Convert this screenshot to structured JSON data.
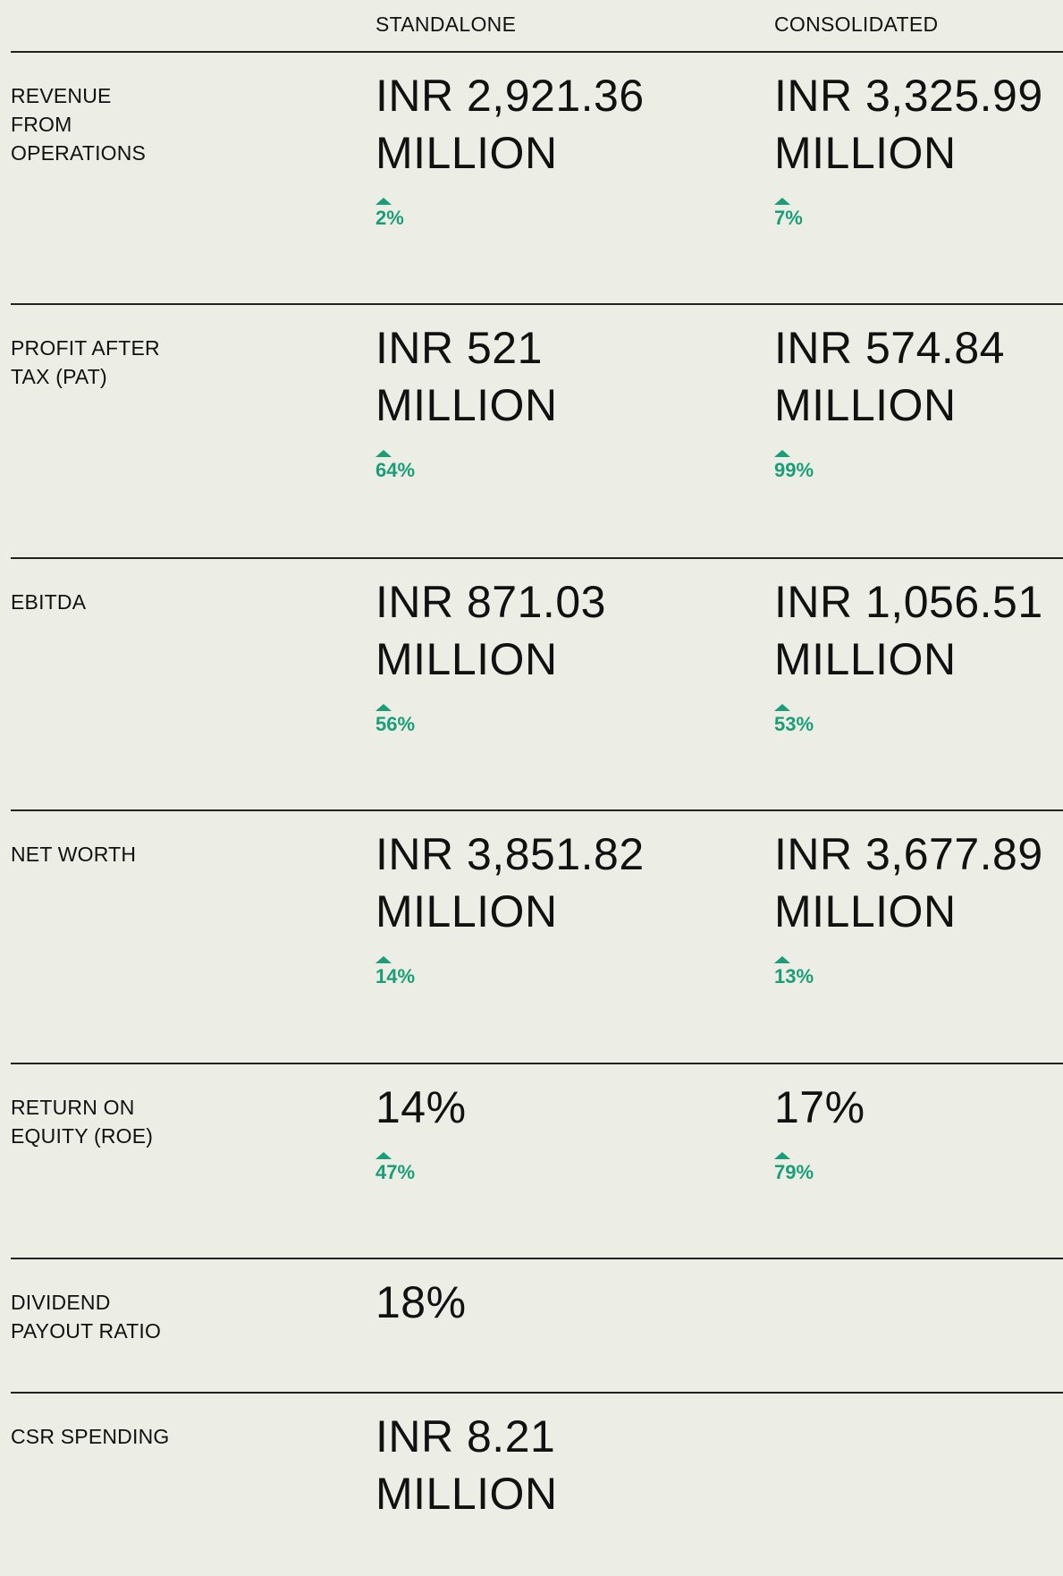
{
  "table": {
    "headers": [
      "STANDALONE",
      "CONSOLIDATED"
    ],
    "rows": [
      {
        "label": [
          "REVENUE",
          "FROM",
          "OPERATIONS"
        ],
        "standalone": {
          "value": [
            "INR 2,921.36",
            "MILLION"
          ],
          "change": "2%"
        },
        "consolidated": {
          "value": [
            "INR 3,325.99",
            "MILLION"
          ],
          "change": "7%"
        }
      },
      {
        "label": [
          "PROFIT AFTER",
          "TAX (PAT)"
        ],
        "standalone": {
          "value": [
            "INR 521",
            "MILLION"
          ],
          "change": "64%"
        },
        "consolidated": {
          "value": [
            "INR 574.84",
            "MILLION"
          ],
          "change": "99%"
        }
      },
      {
        "label": [
          "EBITDA"
        ],
        "standalone": {
          "value": [
            "INR 871.03",
            "MILLION"
          ],
          "change": "56%"
        },
        "consolidated": {
          "value": [
            "INR 1,056.51",
            "MILLION"
          ],
          "change": "53%"
        }
      },
      {
        "label": [
          "NET WORTH"
        ],
        "standalone": {
          "value": [
            "INR 3,851.82",
            "MILLION"
          ],
          "change": "14%"
        },
        "consolidated": {
          "value": [
            "INR 3,677.89",
            "MILLION"
          ],
          "change": "13%"
        }
      },
      {
        "label": [
          "RETURN ON",
          "EQUITY (ROE)"
        ],
        "standalone": {
          "value": [
            "14%"
          ],
          "change": "47%"
        },
        "consolidated": {
          "value": [
            "17%"
          ],
          "change": "79%"
        }
      },
      {
        "label": [
          "DIVIDEND",
          "PAYOUT RATIO"
        ],
        "standalone": {
          "value": [
            "18%"
          ]
        }
      },
      {
        "label": [
          "CSR SPENDING"
        ],
        "standalone": {
          "value": [
            "INR 8.21",
            "MILLION"
          ]
        }
      }
    ]
  }
}
